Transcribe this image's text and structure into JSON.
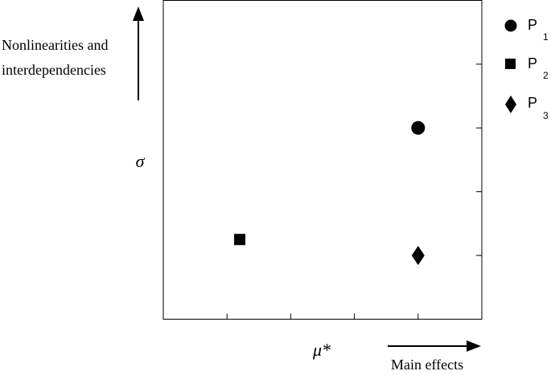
{
  "chart_data": {
    "type": "scatter",
    "title": "",
    "xlabel": "μ*",
    "ylabel": "σ",
    "x_annotation": "Main effects",
    "y_annotation_lines": [
      "Nonlinearities and",
      "interdependencies"
    ],
    "xlim": [
      0,
      5
    ],
    "ylim": [
      0,
      5
    ],
    "x_ticks": [
      1,
      2,
      3,
      4
    ],
    "y_ticks": [
      1,
      2,
      3,
      4
    ],
    "tick_labels_shown": false,
    "grid": false,
    "legend_position": "right",
    "series": [
      {
        "name": "P",
        "subscript": "1",
        "marker": "circle",
        "color": "#000000",
        "points": [
          {
            "x": 4.0,
            "y": 3.0
          }
        ]
      },
      {
        "name": "P",
        "subscript": "2",
        "marker": "square",
        "color": "#000000",
        "points": [
          {
            "x": 1.2,
            "y": 1.25
          }
        ]
      },
      {
        "name": "P",
        "subscript": "3",
        "marker": "diamond",
        "color": "#000000",
        "points": [
          {
            "x": 4.0,
            "y": 1.0
          }
        ]
      }
    ]
  }
}
